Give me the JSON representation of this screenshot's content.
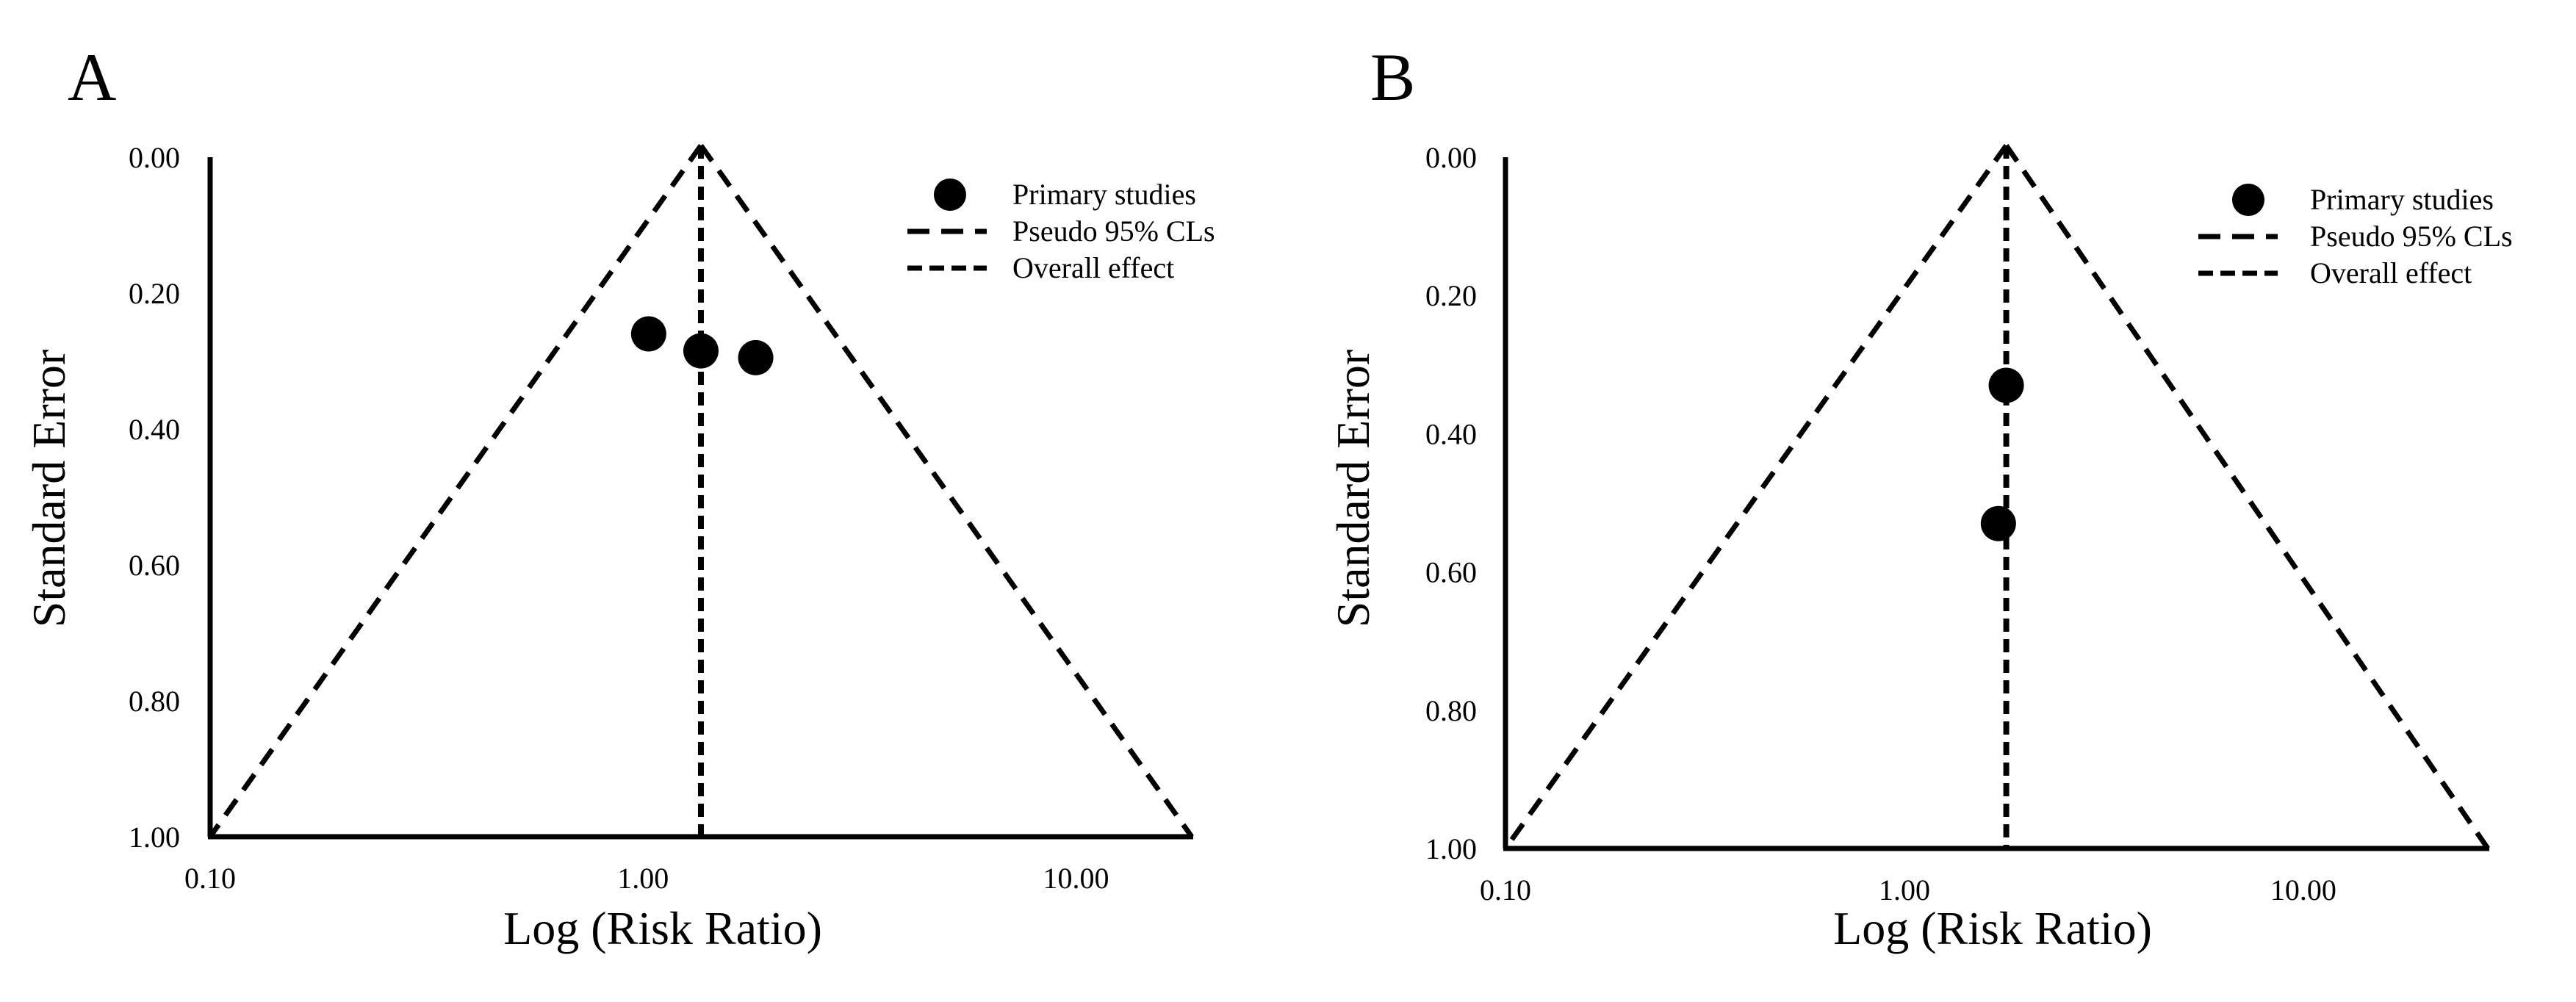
{
  "chart_data": [
    {
      "panel_label": "A",
      "type": "scatter",
      "subtype": "funnel-plot",
      "xlabel": "Log (Risk Ratio)",
      "ylabel": "Standard Error",
      "x_scale": "log",
      "x_ticks": [
        0.1,
        1,
        10
      ],
      "x_tick_labels": [
        "0.10",
        "1.00",
        "10.00"
      ],
      "x_range": [
        0.1,
        18.5
      ],
      "y_ticks": [
        0,
        0.2,
        0.4,
        0.6,
        0.8,
        1.0
      ],
      "y_tick_labels": [
        "0.00",
        "0.20",
        "0.40",
        "0.60",
        "0.80",
        "1.00"
      ],
      "y_range": [
        0,
        1.0
      ],
      "y_inverted": true,
      "overall_effect": 1.36,
      "legend_position": "top-right",
      "legend": [
        "Primary studies",
        "Pseudo 95% CLs",
        "Overall effect"
      ],
      "series": [
        {
          "name": "Primary studies",
          "points": [
            {
              "x": 1.03,
              "y": 0.26
            },
            {
              "x": 1.36,
              "y": 0.285
            },
            {
              "x": 1.82,
              "y": 0.295
            }
          ]
        }
      ]
    },
    {
      "panel_label": "B",
      "type": "scatter",
      "subtype": "funnel-plot",
      "xlabel": "Log (Risk Ratio)",
      "ylabel": "Standard Error",
      "x_scale": "log",
      "x_ticks": [
        0.1,
        1,
        10
      ],
      "x_tick_labels": [
        "0.10",
        "1.00",
        "10.00"
      ],
      "x_range": [
        0.1,
        29
      ],
      "y_ticks": [
        0,
        0.2,
        0.4,
        0.6,
        0.8,
        1.0
      ],
      "y_tick_labels": [
        "0.00",
        "0.20",
        "0.40",
        "0.60",
        "0.80",
        "1.00"
      ],
      "y_range": [
        0,
        1.0
      ],
      "y_inverted": true,
      "overall_effect": 1.8,
      "legend_position": "top-right",
      "legend": [
        "Primary studies",
        "Pseudo 95% CLs",
        "Overall effect"
      ],
      "series": [
        {
          "name": "Primary studies",
          "points": [
            {
              "x": 1.8,
              "y": 0.33
            },
            {
              "x": 1.72,
              "y": 0.53
            }
          ]
        }
      ]
    }
  ]
}
